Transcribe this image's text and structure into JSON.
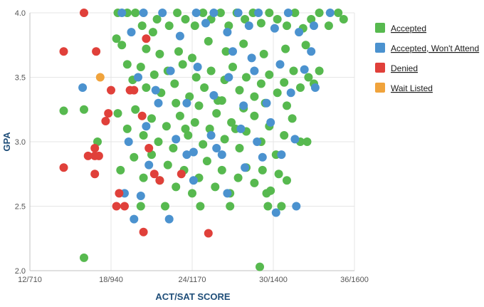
{
  "chart_data": {
    "type": "scatter",
    "xlabel": "ACT/SAT SCORE",
    "ylabel": "GPA",
    "xlim": [
      12,
      36
    ],
    "ylim": [
      2.0,
      4.0
    ],
    "x_ticks": [
      {
        "value": 12,
        "label": "12/710"
      },
      {
        "value": 18,
        "label": "18/940"
      },
      {
        "value": 24,
        "label": "24/1170"
      },
      {
        "value": 30,
        "label": "30/1400"
      },
      {
        "value": 36,
        "label": "36/1600"
      }
    ],
    "y_ticks": [
      {
        "value": 2.0,
        "label": "2.0"
      },
      {
        "value": 2.5,
        "label": "2.5"
      },
      {
        "value": 3.0,
        "label": "3.0"
      },
      {
        "value": 3.5,
        "label": "3.5"
      },
      {
        "value": 4.0,
        "label": "4.0"
      }
    ],
    "grid": true,
    "legend_position": "right",
    "series": [
      {
        "name": "Accepted",
        "color": "#57b94f",
        "points": [
          [
            16.0,
            2.1
          ],
          [
            14.5,
            3.24
          ],
          [
            16.0,
            3.25
          ],
          [
            17.0,
            3.0
          ],
          [
            18.5,
            4.0
          ],
          [
            19.2,
            4.0
          ],
          [
            19.8,
            4.0
          ],
          [
            18.4,
            3.8
          ],
          [
            18.8,
            3.75
          ],
          [
            20.3,
            3.9
          ],
          [
            20.6,
            3.72
          ],
          [
            21.1,
            3.85
          ],
          [
            21.6,
            3.68
          ],
          [
            22.3,
            3.9
          ],
          [
            22.9,
            4.0
          ],
          [
            23.5,
            3.95
          ],
          [
            24.2,
            3.9
          ],
          [
            24.8,
            4.0
          ],
          [
            25.4,
            3.95
          ],
          [
            26.1,
            4.0
          ],
          [
            26.7,
            3.9
          ],
          [
            27.3,
            4.0
          ],
          [
            27.9,
            3.95
          ],
          [
            28.5,
            4.0
          ],
          [
            29.1,
            3.92
          ],
          [
            29.7,
            4.0
          ],
          [
            30.3,
            3.95
          ],
          [
            31.0,
            3.9
          ],
          [
            31.6,
            4.0
          ],
          [
            32.2,
            3.88
          ],
          [
            32.8,
            3.95
          ],
          [
            33.4,
            4.0
          ],
          [
            34.1,
            3.9
          ],
          [
            34.8,
            4.0
          ],
          [
            35.2,
            3.95
          ],
          [
            19.2,
            3.6
          ],
          [
            19.6,
            3.48
          ],
          [
            20.2,
            3.58
          ],
          [
            20.6,
            3.42
          ],
          [
            21.2,
            3.52
          ],
          [
            21.7,
            3.38
          ],
          [
            22.2,
            3.55
          ],
          [
            22.7,
            3.45
          ],
          [
            23.3,
            3.6
          ],
          [
            23.8,
            3.35
          ],
          [
            24.3,
            3.5
          ],
          [
            24.9,
            3.42
          ],
          [
            25.4,
            3.55
          ],
          [
            25.9,
            3.32
          ],
          [
            26.4,
            3.48
          ],
          [
            27.0,
            3.58
          ],
          [
            27.5,
            3.4
          ],
          [
            28.0,
            3.5
          ],
          [
            28.6,
            3.35
          ],
          [
            29.1,
            3.45
          ],
          [
            29.7,
            3.52
          ],
          [
            30.3,
            3.38
          ],
          [
            30.8,
            3.46
          ],
          [
            31.5,
            3.55
          ],
          [
            32.0,
            3.42
          ],
          [
            32.6,
            3.5
          ],
          [
            33.4,
            3.55
          ],
          [
            18.5,
            3.22
          ],
          [
            19.2,
            3.1
          ],
          [
            19.8,
            3.25
          ],
          [
            20.4,
            3.05
          ],
          [
            21.0,
            3.18
          ],
          [
            21.5,
            3.0
          ],
          [
            22.1,
            3.12
          ],
          [
            22.6,
            2.95
          ],
          [
            23.1,
            3.2
          ],
          [
            23.7,
            3.05
          ],
          [
            24.2,
            3.15
          ],
          [
            24.8,
            2.98
          ],
          [
            25.3,
            3.1
          ],
          [
            25.8,
            3.22
          ],
          [
            26.4,
            3.02
          ],
          [
            26.9,
            3.15
          ],
          [
            27.5,
            2.95
          ],
          [
            28.0,
            3.08
          ],
          [
            28.6,
            3.2
          ],
          [
            29.1,
            3.0
          ],
          [
            29.7,
            3.12
          ],
          [
            30.2,
            2.9
          ],
          [
            30.8,
            3.05
          ],
          [
            31.4,
            3.18
          ],
          [
            32.0,
            3.0
          ],
          [
            32.5,
            3.0
          ],
          [
            18.7,
            2.78
          ],
          [
            19.7,
            2.88
          ],
          [
            20.4,
            2.72
          ],
          [
            21.0,
            2.9
          ],
          [
            21.6,
            2.7
          ],
          [
            22.2,
            2.82
          ],
          [
            22.8,
            2.65
          ],
          [
            23.4,
            2.78
          ],
          [
            24.0,
            2.6
          ],
          [
            24.5,
            2.72
          ],
          [
            25.1,
            2.85
          ],
          [
            25.7,
            2.65
          ],
          [
            26.2,
            2.78
          ],
          [
            26.8,
            2.6
          ],
          [
            27.4,
            2.72
          ],
          [
            28.0,
            2.8
          ],
          [
            28.6,
            2.68
          ],
          [
            29.2,
            2.78
          ],
          [
            29.8,
            2.62
          ],
          [
            30.4,
            2.75
          ],
          [
            31.0,
            2.7
          ],
          [
            29.5,
            2.6
          ],
          [
            20.2,
            2.5
          ],
          [
            22.0,
            2.5
          ],
          [
            24.6,
            2.5
          ],
          [
            26.8,
            2.5
          ],
          [
            29.6,
            2.5
          ],
          [
            30.6,
            2.5
          ],
          [
            29.0,
            2.03
          ],
          [
            21.4,
            3.95
          ],
          [
            23.0,
            3.7
          ],
          [
            24.0,
            3.65
          ],
          [
            25.2,
            3.78
          ],
          [
            26.5,
            3.7
          ],
          [
            27.8,
            3.76
          ],
          [
            29.3,
            3.68
          ],
          [
            30.9,
            3.72
          ],
          [
            32.4,
            3.75
          ],
          [
            22.8,
            3.3
          ],
          [
            24.5,
            3.28
          ],
          [
            26.2,
            3.32
          ],
          [
            27.8,
            3.26
          ],
          [
            29.4,
            3.3
          ],
          [
            31.0,
            3.28
          ],
          [
            33.0,
            3.45
          ],
          [
            23.5,
            3.1
          ],
          [
            27.2,
            3.1
          ]
        ]
      },
      {
        "name": "Accepted, Won't Attend",
        "color": "#4b92cf",
        "points": [
          [
            15.9,
            3.42
          ],
          [
            18.8,
            4.0
          ],
          [
            19.5,
            3.85
          ],
          [
            20.4,
            4.0
          ],
          [
            21.8,
            4.0
          ],
          [
            23.1,
            3.82
          ],
          [
            24.3,
            4.0
          ],
          [
            25.0,
            3.92
          ],
          [
            25.6,
            4.0
          ],
          [
            26.6,
            3.85
          ],
          [
            27.4,
            4.0
          ],
          [
            28.2,
            3.9
          ],
          [
            28.9,
            4.0
          ],
          [
            30.1,
            3.88
          ],
          [
            31.1,
            4.0
          ],
          [
            31.9,
            3.85
          ],
          [
            33.0,
            3.9
          ],
          [
            34.2,
            4.0
          ],
          [
            20.0,
            3.5
          ],
          [
            21.3,
            3.4
          ],
          [
            22.4,
            3.55
          ],
          [
            23.6,
            3.3
          ],
          [
            24.4,
            3.58
          ],
          [
            25.6,
            3.36
          ],
          [
            26.7,
            3.5
          ],
          [
            27.8,
            3.28
          ],
          [
            28.6,
            3.55
          ],
          [
            29.5,
            3.3
          ],
          [
            30.5,
            3.6
          ],
          [
            31.3,
            3.38
          ],
          [
            32.3,
            3.56
          ],
          [
            33.1,
            3.42
          ],
          [
            19.3,
            3.0
          ],
          [
            20.6,
            3.12
          ],
          [
            21.5,
            3.3
          ],
          [
            22.8,
            3.02
          ],
          [
            24.1,
            2.92
          ],
          [
            25.4,
            3.05
          ],
          [
            26.2,
            2.9
          ],
          [
            27.6,
            3.1
          ],
          [
            28.8,
            3.0
          ],
          [
            29.8,
            3.15
          ],
          [
            30.6,
            2.9
          ],
          [
            31.6,
            3.02
          ],
          [
            19.0,
            2.6
          ],
          [
            20.2,
            2.58
          ],
          [
            20.8,
            2.82
          ],
          [
            22.3,
            2.4
          ],
          [
            23.6,
            2.9
          ],
          [
            24.1,
            2.7
          ],
          [
            25.8,
            2.95
          ],
          [
            26.6,
            2.6
          ],
          [
            27.9,
            2.8
          ],
          [
            29.2,
            2.88
          ],
          [
            30.2,
            2.45
          ],
          [
            19.7,
            2.4
          ],
          [
            31.7,
            2.5
          ],
          [
            27.0,
            3.7
          ],
          [
            28.4,
            3.65
          ],
          [
            32.8,
            3.7
          ]
        ]
      },
      {
        "name": "Denied",
        "color": "#e0403a",
        "points": [
          [
            16.0,
            4.0
          ],
          [
            14.5,
            3.7
          ],
          [
            16.9,
            3.7
          ],
          [
            18.0,
            3.4
          ],
          [
            17.6,
            3.16
          ],
          [
            17.8,
            3.22
          ],
          [
            16.3,
            2.89
          ],
          [
            16.8,
            2.89
          ],
          [
            17.1,
            2.89
          ],
          [
            16.8,
            2.95
          ],
          [
            16.8,
            2.75
          ],
          [
            14.5,
            2.8
          ],
          [
            18.6,
            2.6
          ],
          [
            18.4,
            2.5
          ],
          [
            19.0,
            2.5
          ],
          [
            20.4,
            2.3
          ],
          [
            25.2,
            2.29
          ],
          [
            19.4,
            3.4
          ],
          [
            19.7,
            3.4
          ],
          [
            20.3,
            3.2
          ],
          [
            21.2,
            2.75
          ],
          [
            21.6,
            2.7
          ],
          [
            23.2,
            2.75
          ],
          [
            20.6,
            3.8
          ],
          [
            20.8,
            2.95
          ]
        ]
      },
      {
        "name": "Wait Listed",
        "color": "#f0a33c",
        "points": [
          [
            17.2,
            3.5
          ]
        ]
      }
    ]
  }
}
